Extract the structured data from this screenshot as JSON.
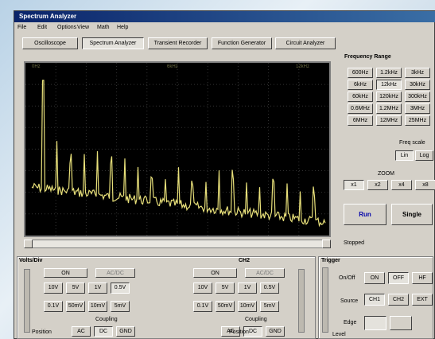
{
  "window": {
    "title": "Spectrum Analyzer",
    "menu": [
      "File",
      "Edit",
      "Options",
      "View",
      "Math",
      "Help"
    ]
  },
  "tabs": [
    "Oscilloscope",
    "Spectrum Analyzer",
    "Transient Recorder",
    "Function Generator",
    "Circuit Analyzer"
  ],
  "screen": {
    "labels": [
      "0Hz",
      "6kHz",
      "12kHz"
    ]
  },
  "frequency_range": {
    "title": "Frequency Range",
    "buttons": [
      "600Hz",
      "1.2kHz",
      "3kHz",
      "6kHz",
      "12kHz",
      "30kHz",
      "60kHz",
      "120kHz",
      "300kHz",
      "0.6MHz",
      "1.2MHz",
      "3MHz",
      "6MHz",
      "12MHz",
      "25MHz"
    ]
  },
  "freq_scale": {
    "title": "Freq scale",
    "buttons": [
      "Lin",
      "Log"
    ]
  },
  "zoom": {
    "title": "ZOOM",
    "buttons": [
      "x1",
      "x2",
      "x4",
      "x8"
    ]
  },
  "run": "Run",
  "single": "Single",
  "status": "Stopped",
  "channels": [
    {
      "title": "Volts/Div",
      "on": "ON",
      "acdc": "AC/DC",
      "volts": [
        "10V",
        "5V",
        "1V",
        "0.5V",
        "0.1V",
        "50mV",
        "10mV",
        "5mV"
      ],
      "coupling_title": "Coupling",
      "coupling": [
        "AC",
        "DC",
        "GND"
      ],
      "position": "Position"
    },
    {
      "title": "CH2",
      "on": "ON",
      "acdc": "AC/DC",
      "volts": [
        "10V",
        "5V",
        "1V",
        "0.5V",
        "0.1V",
        "50mV",
        "10mV",
        "5mV"
      ],
      "coupling_title": "Coupling",
      "coupling": [
        "AC",
        "DC",
        "GND"
      ],
      "position": "Position"
    }
  ],
  "trigger": {
    "title": "Trigger",
    "onoff_label": "On/Off",
    "onoff": [
      "ON",
      "OFF",
      "HF"
    ],
    "source_label": "Source",
    "source": [
      "CH1",
      "CH2",
      "EXT"
    ],
    "edge_label": "Edge",
    "level_label": "Level"
  }
}
